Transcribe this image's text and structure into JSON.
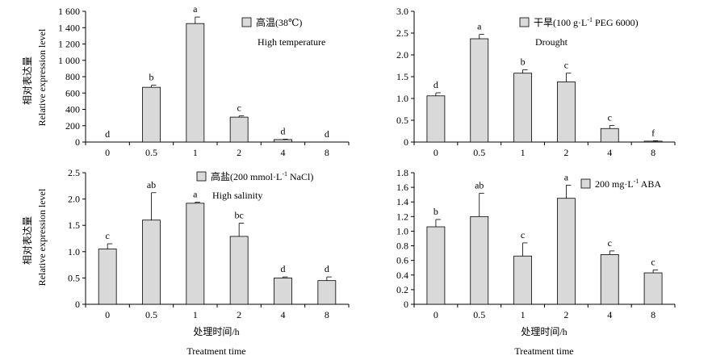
{
  "shared": {
    "categories": [
      "0",
      "0.5",
      "1",
      "2",
      "4",
      "8"
    ],
    "ylabel_cn": "相对表达量",
    "ylabel_en": "Relative expression level",
    "xlabel_cn": "处理时间/h",
    "xlabel_en": "Treatment time"
  },
  "chart_data": [
    {
      "type": "bar",
      "title_cn": "高温(38℃)",
      "title_en": "High temperature",
      "categories": [
        "0",
        "0.5",
        "1",
        "2",
        "4",
        "8"
      ],
      "values": [
        0,
        670,
        1450,
        305,
        30,
        0
      ],
      "errors": [
        0,
        25,
        80,
        15,
        5,
        0
      ],
      "sig": [
        "d",
        "b",
        "a",
        "c",
        "d",
        "d"
      ],
      "ylim": [
        0,
        1600
      ],
      "yticks": [
        0,
        200,
        400,
        600,
        800,
        1000,
        1200,
        1400,
        1600
      ],
      "ytick_labels": [
        "0",
        "200",
        "400",
        "600",
        "800",
        "1 000",
        "1 200",
        "1 400",
        "1 600"
      ]
    },
    {
      "type": "bar",
      "title_cn": "干旱(100 g·L",
      "title_sup": "-1",
      "title_cn_end": " PEG 6000)",
      "title_en": "Drought",
      "categories": [
        "0",
        "0.5",
        "1",
        "2",
        "4",
        "8"
      ],
      "values": [
        1.06,
        2.37,
        1.58,
        1.38,
        0.31,
        0.02
      ],
      "errors": [
        0.07,
        0.1,
        0.08,
        0.2,
        0.07,
        0.01
      ],
      "sig": [
        "d",
        "a",
        "b",
        "c",
        "c",
        "f"
      ],
      "ylim": [
        0,
        3.0
      ],
      "yticks": [
        0,
        0.5,
        1.0,
        1.5,
        2.0,
        2.5,
        3.0
      ],
      "ytick_labels": [
        "0",
        "0.5",
        "1.0",
        "1.5",
        "2.0",
        "2.5",
        "3.0"
      ]
    },
    {
      "type": "bar",
      "title_cn": "高盐(200 mmol·L",
      "title_sup": "-1",
      "title_cn_end": " NaCl)",
      "title_en": "High salinity",
      "categories": [
        "0",
        "0.5",
        "1",
        "2",
        "4",
        "8"
      ],
      "values": [
        1.05,
        1.6,
        1.92,
        1.29,
        0.5,
        0.45
      ],
      "errors": [
        0.1,
        0.52,
        0.02,
        0.25,
        0.02,
        0.07
      ],
      "sig": [
        "c",
        "ab",
        "a",
        "bc",
        "d",
        "d"
      ],
      "ylim": [
        0,
        2.5
      ],
      "yticks": [
        0,
        0.5,
        1.0,
        1.5,
        2.0,
        2.5
      ],
      "ytick_labels": [
        "0",
        "0.5",
        "1.0",
        "1.5",
        "2.0",
        "2.5"
      ]
    },
    {
      "type": "bar",
      "title_cn": "200 mg·L",
      "title_sup": "-1",
      "title_cn_end": " ABA",
      "title_en": "",
      "categories": [
        "0",
        "0.5",
        "1",
        "2",
        "4",
        "8"
      ],
      "values": [
        1.06,
        1.2,
        0.66,
        1.45,
        0.68,
        0.43
      ],
      "errors": [
        0.1,
        0.32,
        0.18,
        0.18,
        0.05,
        0.04
      ],
      "sig": [
        "b",
        "ab",
        "c",
        "a",
        "c",
        "c"
      ],
      "ylim": [
        0,
        1.8
      ],
      "yticks": [
        0,
        0.2,
        0.4,
        0.6,
        0.8,
        1.0,
        1.2,
        1.4,
        1.6,
        1.8
      ],
      "ytick_labels": [
        "0",
        "0.2",
        "0.4",
        "0.6",
        "0.8",
        "1.0",
        "1.2",
        "1.4",
        "1.6",
        "1.8"
      ]
    }
  ]
}
